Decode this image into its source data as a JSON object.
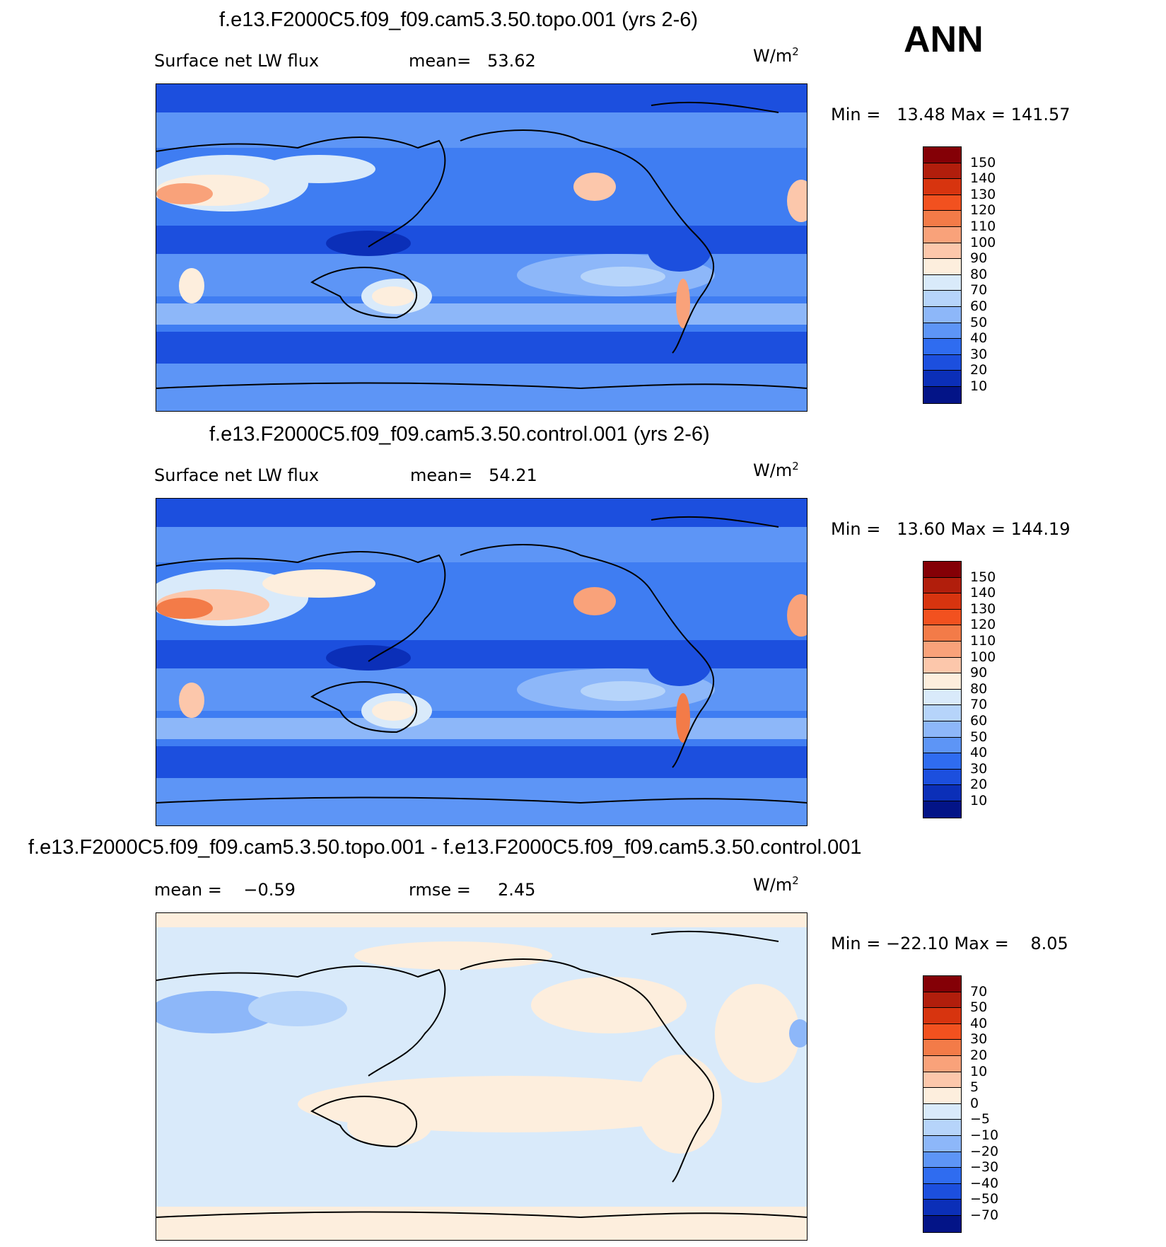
{
  "season": "ANN",
  "units_base": "W/m",
  "units_exp": "2",
  "panels": [
    {
      "title": "f.e13.F2000C5.f09_f09.cam5.3.50.topo.001 (yrs 2-6)",
      "variable": "Surface net LW flux",
      "stat_label": "mean=",
      "stat_value": "53.62",
      "min_label": "Min =",
      "min_value": "13.48",
      "max_label": "Max =",
      "max_value": "141.57",
      "levels": [
        "150",
        "140",
        "130",
        "120",
        "110",
        "100",
        "90",
        "80",
        "70",
        "60",
        "50",
        "40",
        "30",
        "20",
        "10"
      ],
      "colors": [
        "#840006",
        "#b11e0c",
        "#d7340f",
        "#f2511f",
        "#f37b48",
        "#f9a27a",
        "#fcc7ab",
        "#fdeedd",
        "#d9eafa",
        "#b6d4fa",
        "#8db7f9",
        "#5d95f6",
        "#2f6cf0",
        "#1c4fde",
        "#0b2fb8",
        "#031487"
      ],
      "background": "#3f7df2"
    },
    {
      "title": "f.e13.F2000C5.f09_f09.cam5.3.50.control.001 (yrs 2-6)",
      "variable": "Surface net LW flux",
      "stat_label": "mean=",
      "stat_value": "54.21",
      "min_label": "Min =",
      "min_value": "13.60",
      "max_label": "Max =",
      "max_value": "144.19",
      "levels": [
        "150",
        "140",
        "130",
        "120",
        "110",
        "100",
        "90",
        "80",
        "70",
        "60",
        "50",
        "40",
        "30",
        "20",
        "10"
      ],
      "colors": [
        "#840006",
        "#b11e0c",
        "#d7340f",
        "#f2511f",
        "#f37b48",
        "#f9a27a",
        "#fcc7ab",
        "#fdeedd",
        "#d9eafa",
        "#b6d4fa",
        "#8db7f9",
        "#5d95f6",
        "#2f6cf0",
        "#1c4fde",
        "#0b2fb8",
        "#031487"
      ],
      "background": "#3f7df2"
    },
    {
      "title": "f.e13.F2000C5.f09_f09.cam5.3.50.topo.001 - f.e13.F2000C5.f09_f09.cam5.3.50.control.001",
      "stat_label": "mean =",
      "stat_value": "−0.59",
      "stat2_label": "rmse =",
      "stat2_value": "2.45",
      "min_label": "Min =",
      "min_value": "−22.10",
      "max_label": "Max =",
      "max_value": "8.05",
      "levels": [
        "70",
        "50",
        "40",
        "30",
        "20",
        "10",
        "5",
        "0",
        "−5",
        "−10",
        "−20",
        "−30",
        "−40",
        "−50",
        "−70"
      ],
      "colors": [
        "#840006",
        "#b11e0c",
        "#d7340f",
        "#f2511f",
        "#f37b48",
        "#f9a27a",
        "#fcc7ab",
        "#fdeedd",
        "#d9eafa",
        "#b6d4fa",
        "#8db7f9",
        "#5d95f6",
        "#2f6cf0",
        "#1c4fde",
        "#0b2fb8",
        "#031487"
      ],
      "background": "#d9eafa"
    }
  ]
}
